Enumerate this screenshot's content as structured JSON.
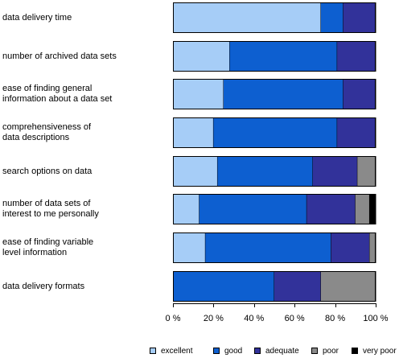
{
  "chart_data": {
    "type": "bar",
    "orientation": "horizontal",
    "stacked": true,
    "categories": [
      "data delivery time",
      "number of archived data sets",
      "ease of finding general\ninformation about a data set",
      "comprehensiveness of\ndata descriptions",
      "search options on data",
      "number of data sets of\ninterest to me personally",
      "ease of finding variable\nlevel information",
      "data delivery formats"
    ],
    "series": [
      {
        "name": "excellent",
        "color": "#a6cdf7",
        "values": [
          73,
          28,
          25,
          20,
          22,
          13,
          16,
          0
        ]
      },
      {
        "name": "good",
        "color": "#0d5fd0",
        "values": [
          11,
          53,
          59,
          61,
          47,
          53,
          62,
          50
        ]
      },
      {
        "name": "adequate",
        "color": "#32329a",
        "values": [
          16,
          19,
          16,
          19,
          22,
          24,
          19,
          23
        ]
      },
      {
        "name": "poor",
        "color": "#8a8a8a",
        "values": [
          0,
          0,
          0,
          0,
          9,
          7,
          3,
          27
        ]
      },
      {
        "name": "very poor",
        "color": "#000000",
        "values": [
          0,
          0,
          0,
          0,
          0,
          3,
          0,
          0
        ]
      }
    ],
    "xlim": [
      0,
      100
    ],
    "xticks": [
      0,
      20,
      40,
      60,
      80,
      100
    ],
    "xtick_labels": [
      "0 %",
      "20 %",
      "40 %",
      "60 %",
      "80 %",
      "100 %"
    ],
    "legend_position": "bottom"
  }
}
